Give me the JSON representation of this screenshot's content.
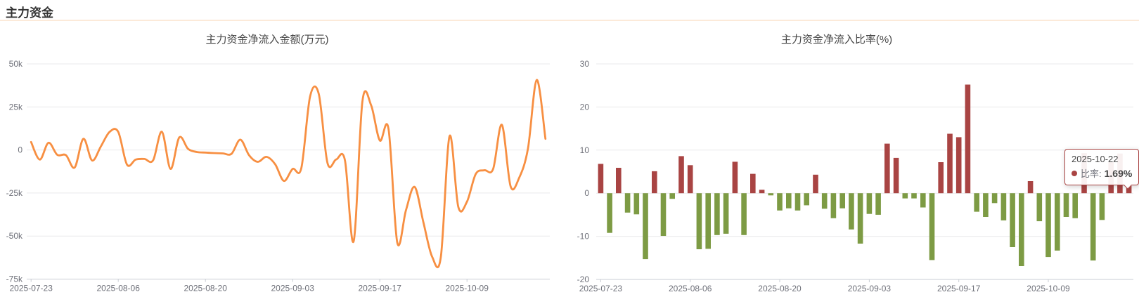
{
  "header": {
    "title": "主力资金"
  },
  "colors": {
    "line": "#f78f42",
    "bar_positive": "#a94443",
    "bar_negative": "#7d9b44",
    "grid": "#e9e9eb",
    "axis": "#c9cdd4",
    "tick_label": "#6e7079",
    "title": "#454545"
  },
  "tooltip": {
    "date": "2025-10-22",
    "series_label": "比率:",
    "value": "1.69%",
    "marker_color": "#a94443"
  },
  "chart_data": [
    {
      "type": "line",
      "title": "主力资金净流入金额(万元)",
      "ylabel": "万元",
      "ylim": [
        -75000,
        50000
      ],
      "grid": true,
      "color": "#f78f42",
      "y_ticks": {
        "values": [
          50000,
          25000,
          0,
          -25000,
          -50000,
          -75000
        ],
        "labels": [
          "50k",
          "25k",
          "0",
          "-25k",
          "-50k",
          "-75k"
        ]
      },
      "x_ticks": {
        "indices": [
          0,
          10,
          20,
          30,
          40,
          50
        ],
        "labels": [
          "2025-07-23",
          "2025-08-06",
          "2025-08-20",
          "2025-09-03",
          "2025-09-17",
          "2025-10-09"
        ]
      },
      "x_range": [
        "2025-07-23",
        "2025-10-22"
      ],
      "values": [
        4600,
        -5600,
        4200,
        -2800,
        -3000,
        -10200,
        6500,
        -6100,
        2000,
        10500,
        10500,
        -8500,
        -5600,
        -5200,
        -6000,
        10600,
        -11000,
        7300,
        700,
        -1200,
        -1500,
        -1800,
        -2000,
        -2200,
        6000,
        -3000,
        -6900,
        -4000,
        -8300,
        -18000,
        -11000,
        -10500,
        31000,
        32500,
        -7600,
        -5500,
        -6000,
        -53000,
        28000,
        26000,
        5500,
        12200,
        -53700,
        -35000,
        -21500,
        -42000,
        -62000,
        -62200,
        8000,
        -33000,
        -30000,
        -14000,
        -11800,
        -11000,
        14600,
        -21100,
        -16000,
        1000,
        40700,
        6500
      ]
    },
    {
      "type": "bar",
      "title": "主力资金净流入比率(%)",
      "ylabel": "%",
      "ylim": [
        -20,
        30
      ],
      "grid": true,
      "colors": {
        "positive": "#a94443",
        "negative": "#7d9b44"
      },
      "y_ticks": {
        "values": [
          30,
          20,
          10,
          0,
          -10,
          -20
        ],
        "labels": [
          "30",
          "20",
          "10",
          "0",
          "-10",
          "-20"
        ]
      },
      "x_ticks": {
        "indices": [
          0,
          10,
          20,
          30,
          40,
          50
        ],
        "labels": [
          "2025-07-23",
          "2025-08-06",
          "2025-08-20",
          "2025-09-03",
          "2025-09-17",
          "2025-10-09"
        ]
      },
      "x_range": [
        "2025-07-23",
        "2025-10-22"
      ],
      "highlighted_index": 59,
      "values": [
        6.8,
        -9.2,
        5.9,
        -4.5,
        -4.9,
        -15.3,
        5.1,
        -9.9,
        -1.3,
        8.6,
        6.5,
        -13.0,
        -12.9,
        -9.7,
        -9.4,
        7.3,
        -9.7,
        4.5,
        0.8,
        -0.5,
        -4.0,
        -3.5,
        -4.0,
        -2.8,
        4.3,
        -3.6,
        -5.8,
        -3.5,
        -8.4,
        -11.7,
        -4.8,
        -5.0,
        11.5,
        8.2,
        -1.2,
        -1.2,
        -3.3,
        -15.5,
        7.2,
        13.8,
        13.0,
        25.2,
        -4.3,
        -5.5,
        -2.3,
        -6.3,
        -12.5,
        -16.9,
        2.8,
        -6.5,
        -14.8,
        -13.3,
        -5.5,
        -5.8,
        9.3,
        -15.6,
        -6.2,
        7.3,
        9.2,
        1.69
      ]
    }
  ]
}
